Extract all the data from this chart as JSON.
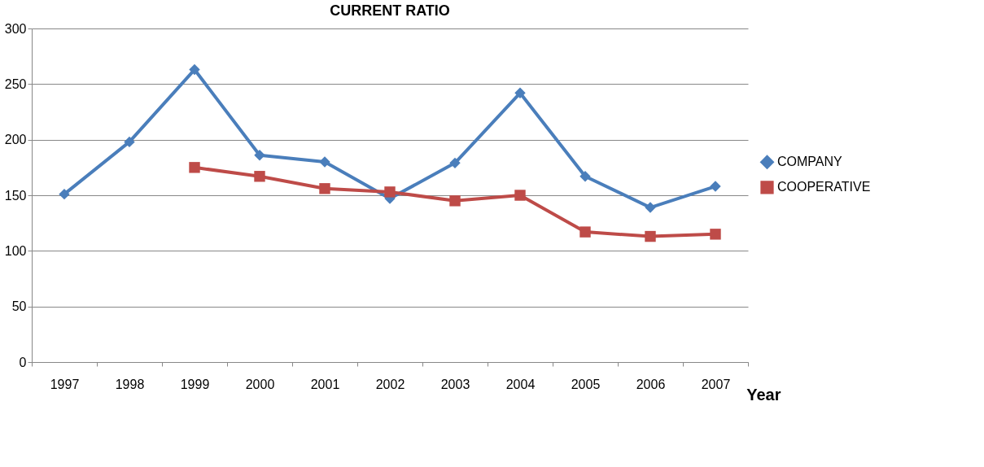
{
  "chart_data": {
    "type": "line",
    "title": "CURRENT RATIO",
    "xlabel": "Year",
    "categories": [
      "1997",
      "1998",
      "1999",
      "2000",
      "2001",
      "2002",
      "2003",
      "2004",
      "2005",
      "2006",
      "2007"
    ],
    "series": [
      {
        "name": "COMPANY",
        "color": "#4a7ebb",
        "marker": "diamond",
        "values": [
          151,
          198,
          263,
          186,
          180,
          147,
          179,
          242,
          167,
          139,
          158
        ]
      },
      {
        "name": "COOPERATIVE",
        "color": "#be4b48",
        "marker": "square",
        "values": [
          null,
          null,
          175,
          167,
          156,
          153,
          145,
          150,
          117,
          113,
          115
        ]
      }
    ],
    "ylim": [
      0,
      300
    ],
    "yticks": [
      0,
      50,
      100,
      150,
      200,
      250,
      300
    ],
    "grid": "y",
    "legend": "right",
    "line_style": "solid"
  }
}
